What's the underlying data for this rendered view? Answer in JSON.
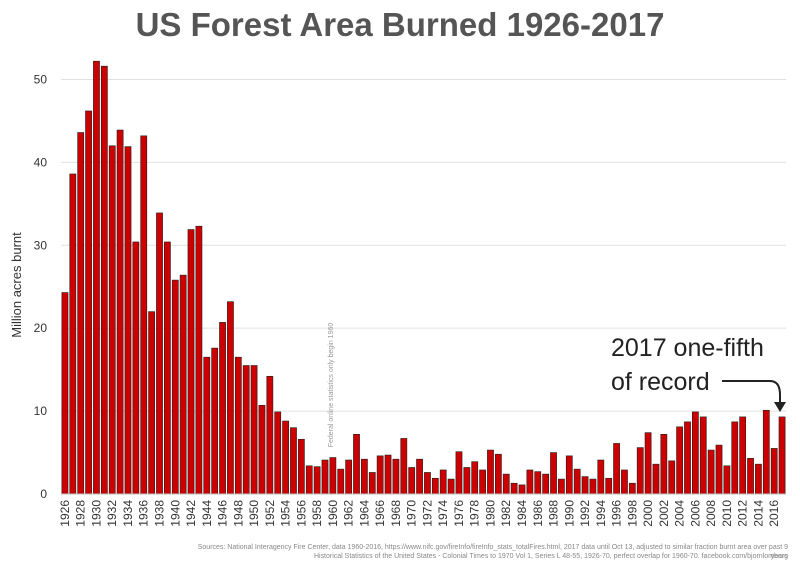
{
  "chart_data": {
    "type": "bar",
    "title": "US Forest Area Burned 1926-2017",
    "ylabel": "Million acres burnt",
    "xlabel": "",
    "ylim": [
      0,
      55
    ],
    "yticks": [
      0,
      10,
      20,
      30,
      40,
      50
    ],
    "grid": true,
    "bar_color": "#cc0000",
    "start_year": 1926,
    "x": [
      1926,
      1927,
      1928,
      1929,
      1930,
      1931,
      1932,
      1933,
      1934,
      1935,
      1936,
      1937,
      1938,
      1939,
      1940,
      1941,
      1942,
      1943,
      1944,
      1945,
      1946,
      1947,
      1948,
      1949,
      1950,
      1951,
      1952,
      1953,
      1954,
      1955,
      1956,
      1957,
      1958,
      1959,
      1960,
      1961,
      1962,
      1963,
      1964,
      1965,
      1966,
      1967,
      1968,
      1969,
      1970,
      1971,
      1972,
      1973,
      1974,
      1975,
      1976,
      1977,
      1978,
      1979,
      1980,
      1981,
      1982,
      1983,
      1984,
      1985,
      1986,
      1987,
      1988,
      1989,
      1990,
      1991,
      1992,
      1993,
      1994,
      1995,
      1996,
      1997,
      1998,
      1999,
      2000,
      2001,
      2002,
      2003,
      2004,
      2005,
      2006,
      2007,
      2008,
      2009,
      2010,
      2011,
      2012,
      2013,
      2014,
      2015,
      2016,
      2017
    ],
    "values": [
      24.3,
      38.6,
      43.6,
      46.2,
      52.2,
      51.6,
      42.0,
      43.9,
      41.9,
      30.4,
      43.2,
      22.0,
      33.9,
      30.4,
      25.8,
      26.4,
      31.9,
      32.3,
      16.5,
      17.6,
      20.7,
      23.2,
      16.5,
      15.5,
      15.5,
      10.7,
      14.2,
      9.9,
      8.8,
      8.0,
      6.6,
      3.4,
      3.3,
      4.1,
      4.4,
      3.0,
      4.1,
      7.2,
      4.2,
      2.6,
      4.6,
      4.7,
      4.2,
      6.7,
      3.2,
      4.2,
      2.6,
      1.9,
      2.9,
      1.8,
      5.1,
      3.2,
      3.9,
      2.9,
      5.3,
      4.8,
      2.4,
      1.3,
      1.1,
      2.9,
      2.7,
      2.4,
      5.0,
      1.8,
      4.6,
      3.0,
      2.1,
      1.8,
      4.1,
      1.9,
      6.1,
      2.9,
      1.3,
      5.6,
      7.4,
      3.6,
      7.2,
      4.0,
      8.1,
      8.7,
      9.9,
      9.3,
      5.3,
      5.9,
      3.4,
      8.7,
      9.3,
      4.3,
      3.6,
      10.1,
      5.5,
      9.3
    ],
    "xtick_labels": [
      "1926",
      "1928",
      "1930",
      "1932",
      "1934",
      "1936",
      "1938",
      "1940",
      "1942",
      "1944",
      "1946",
      "1948",
      "1950",
      "1952",
      "1954",
      "1956",
      "1958",
      "1960",
      "1962",
      "1964",
      "1966",
      "1968",
      "1970",
      "1972",
      "1974",
      "1976",
      "1978",
      "1980",
      "1982",
      "1984",
      "1986",
      "1988",
      "1990",
      "1992",
      "1994",
      "1996",
      "1998",
      "2000",
      "2002",
      "2004",
      "2006",
      "2008",
      "2010",
      "2012",
      "2014",
      "2016"
    ],
    "annotations": {
      "record_line1": "2017 one-fifth",
      "record_line2": "of record",
      "federal_note": "Federal online statistics only begin 1960"
    },
    "sources": {
      "line1": "Sources: National Interagency Fire Center, data 1960-2016, https://www.nifc.gov/fireInfo/fireInfo_stats_totalFires.html, 2017 data until Oct 13, adjusted to similar fraction burnt area over past 9 years",
      "line2": "Historical Statistics of the United States - Colonial Times to 1970 Vol 1, Series L 48-55, 1926-70, perfect overlap for 1960-70. facebook.com/bjornlomborg"
    }
  }
}
